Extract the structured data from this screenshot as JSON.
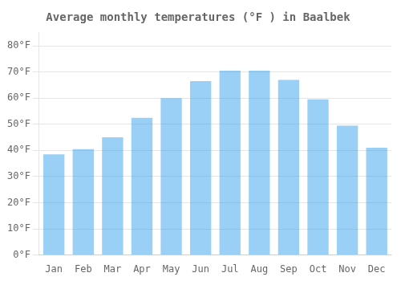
{
  "chart_data": {
    "type": "bar",
    "title": "Average monthly temperatures (°F ) in Baalbek",
    "categories": [
      "Jan",
      "Feb",
      "Mar",
      "Apr",
      "May",
      "Jun",
      "Jul",
      "Aug",
      "Sep",
      "Oct",
      "Nov",
      "Dec"
    ],
    "values": [
      38.5,
      40.5,
      45.0,
      52.5,
      60.0,
      66.5,
      70.5,
      70.5,
      67.0,
      59.5,
      49.5,
      41.0
    ],
    "ylim": [
      0,
      85
    ],
    "yticks": [
      {
        "value": 0,
        "label": "0°F"
      },
      {
        "value": 10,
        "label": "10°F"
      },
      {
        "value": 20,
        "label": "20°F"
      },
      {
        "value": 30,
        "label": "30°F"
      },
      {
        "value": 40,
        "label": "40°F"
      },
      {
        "value": 50,
        "label": "50°F"
      },
      {
        "value": 60,
        "label": "60°F"
      },
      {
        "value": 70,
        "label": "70°F"
      },
      {
        "value": 80,
        "label": "80°F"
      }
    ],
    "grid": true
  }
}
